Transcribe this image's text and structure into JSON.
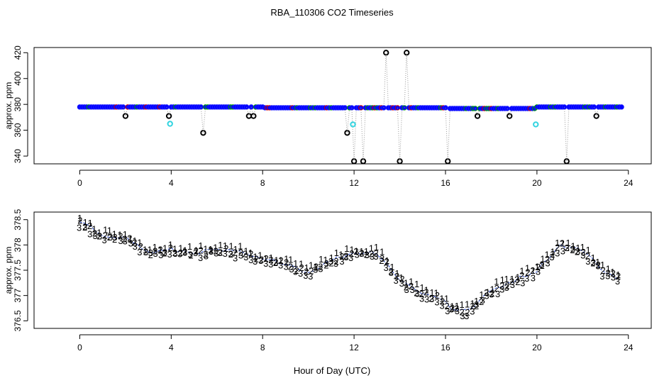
{
  "title": "RBA_110306  CO2 Timeseries",
  "xlabel": "Hour of Day (UTC)",
  "chart_data": [
    {
      "type": "scatter",
      "ylabel": "approx. ppm",
      "xlim": [
        -2,
        25
      ],
      "ylim": [
        334,
        424
      ],
      "xticks": [
        0,
        4,
        8,
        12,
        16,
        20,
        24
      ],
      "xtick_labels": [
        "0",
        "4",
        "8",
        "12",
        "16",
        "20",
        "24"
      ],
      "yticks": [
        340,
        360,
        380,
        400,
        420
      ],
      "ytick_labels": [
        "340",
        "360",
        "380",
        "400",
        "420"
      ],
      "baseline": 378,
      "outlier_levels": [
        420,
        371,
        358,
        336
      ],
      "cyan_points": [
        [
          3.95,
          365
        ],
        [
          11.95,
          364.5
        ],
        [
          19.95,
          364.5
        ]
      ],
      "series_colors": {
        "main": "#0000ff",
        "outlier": "#000000",
        "cyan": "#33d4e0",
        "green": "#00a000",
        "red": "#d00000",
        "gap_line": "#999999"
      }
    },
    {
      "type": "scatter",
      "ylabel": "approx. ppm",
      "xlim": [
        -2,
        25
      ],
      "ylim": [
        376.35,
        378.65
      ],
      "xticks": [
        0,
        4,
        8,
        12,
        16,
        20,
        24
      ],
      "xtick_labels": [
        "0",
        "4",
        "8",
        "12",
        "16",
        "20",
        "24"
      ],
      "yticks": [
        376.5,
        377,
        377.5,
        378,
        378.5
      ],
      "ytick_labels": [
        "376.5",
        "377",
        "377.5",
        "378",
        "378.5"
      ],
      "markers": [
        "1",
        "2",
        "3"
      ],
      "marker_colors": [
        "#d00000",
        "#00a000",
        "#0000cc"
      ],
      "trend": [
        [
          0,
          378.45
        ],
        [
          1,
          378.2
        ],
        [
          2,
          378.15
        ],
        [
          3,
          377.85
        ],
        [
          4,
          377.9
        ],
        [
          5,
          377.85
        ],
        [
          6,
          377.9
        ],
        [
          7,
          377.85
        ],
        [
          8,
          377.7
        ],
        [
          9,
          377.65
        ],
        [
          10,
          377.45
        ],
        [
          11,
          377.7
        ],
        [
          12,
          377.85
        ],
        [
          13,
          377.85
        ],
        [
          13.5,
          377.6
        ],
        [
          14,
          377.3
        ],
        [
          15,
          377.05
        ],
        [
          16,
          376.9
        ],
        [
          16.1,
          376.75
        ],
        [
          17,
          376.7
        ],
        [
          18,
          377.1
        ],
        [
          19,
          377.3
        ],
        [
          20,
          377.5
        ],
        [
          21,
          378.0
        ],
        [
          22,
          377.9
        ],
        [
          23,
          377.45
        ],
        [
          23.6,
          377.35
        ]
      ]
    }
  ]
}
